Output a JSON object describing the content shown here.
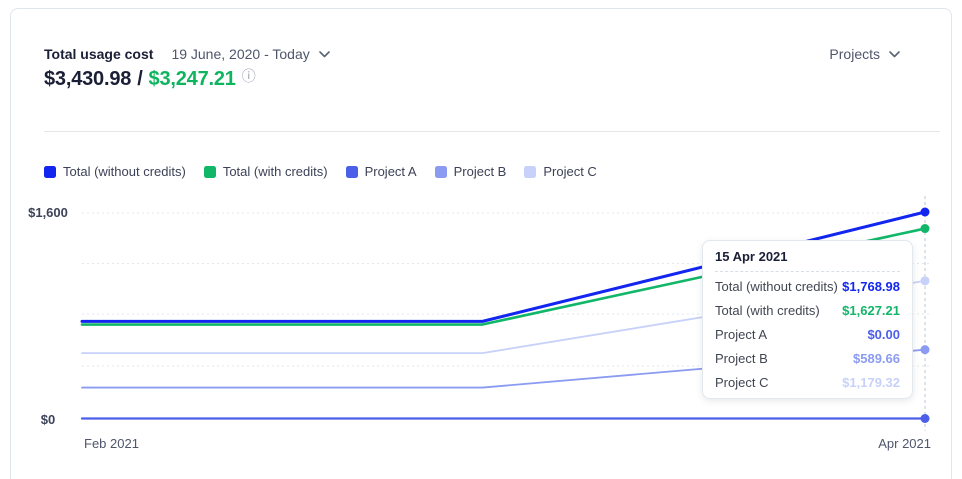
{
  "header": {
    "title": "Total usage cost",
    "date_range": "19 June, 2020 - Today",
    "scope_selector": "Projects"
  },
  "summary": {
    "total_without_credits": "$3,430.98",
    "separator": "/",
    "total_with_credits": "$3,247.21",
    "info_icon": "ⓘ"
  },
  "legend": [
    {
      "label": "Total (without credits)",
      "color": "#1226f0"
    },
    {
      "label": "Total (with credits)",
      "color": "#12b669"
    },
    {
      "label": "Project A",
      "color": "#4c5fe9"
    },
    {
      "label": "Project B",
      "color": "#8b9bf1"
    },
    {
      "label": "Project C",
      "color": "#c7d1f9"
    }
  ],
  "axis": {
    "y_max_label": "$1,600",
    "y_min_label": "$0",
    "x_left_label": "Feb 2021",
    "x_right_label": "Apr 2021"
  },
  "chart_data": {
    "type": "line",
    "title": "Total usage cost over time",
    "x_axis": {
      "start_label": "Feb 2021",
      "end_label": "Apr 2021",
      "hover_point": "15 Apr 2021"
    },
    "y_axis": {
      "min": 0,
      "max_gridline_label": "$1,600",
      "min_label": "$0",
      "unit": "USD"
    },
    "grid": "horizontal-dashed",
    "legend_position": "top",
    "series": [
      {
        "name": "Total (without credits)",
        "color": "#1226f0",
        "points": [
          {
            "pos": 0,
            "value": 832
          },
          {
            "pos": 0.475,
            "value": 832
          },
          {
            "pos": 1,
            "value": 1768.98
          }
        ]
      },
      {
        "name": "Total (with credits)",
        "color": "#12b669",
        "points": [
          {
            "pos": 0,
            "value": 805
          },
          {
            "pos": 0.475,
            "value": 805
          },
          {
            "pos": 1,
            "value": 1627.21
          }
        ]
      },
      {
        "name": "Project A",
        "color": "#4c5fe9",
        "points": [
          {
            "pos": 0,
            "value": 0
          },
          {
            "pos": 0.475,
            "value": 0
          },
          {
            "pos": 1,
            "value": 0
          }
        ]
      },
      {
        "name": "Project B",
        "color": "#8b9bf1",
        "points": [
          {
            "pos": 0,
            "value": 265
          },
          {
            "pos": 0.475,
            "value": 265
          },
          {
            "pos": 1,
            "value": 589.66
          }
        ]
      },
      {
        "name": "Project C",
        "color": "#c7d1f9",
        "points": [
          {
            "pos": 0,
            "value": 560
          },
          {
            "pos": 0.475,
            "value": 560
          },
          {
            "pos": 1,
            "value": 1179.32
          }
        ]
      }
    ]
  },
  "tooltip": {
    "title": "15 Apr 2021",
    "rows": [
      {
        "label": "Total (without credits)",
        "value": "$1,768.98",
        "color": "#1226f0"
      },
      {
        "label": "Total (with credits)",
        "value": "$1,627.21",
        "color": "#12b669"
      },
      {
        "label": "Project A",
        "value": "$0.00",
        "color": "#4c5fe9"
      },
      {
        "label": "Project B",
        "value": "$589.66",
        "color": "#8b9bf1"
      },
      {
        "label": "Project C",
        "value": "$1,179.32",
        "color": "#c7d1f9"
      }
    ]
  }
}
